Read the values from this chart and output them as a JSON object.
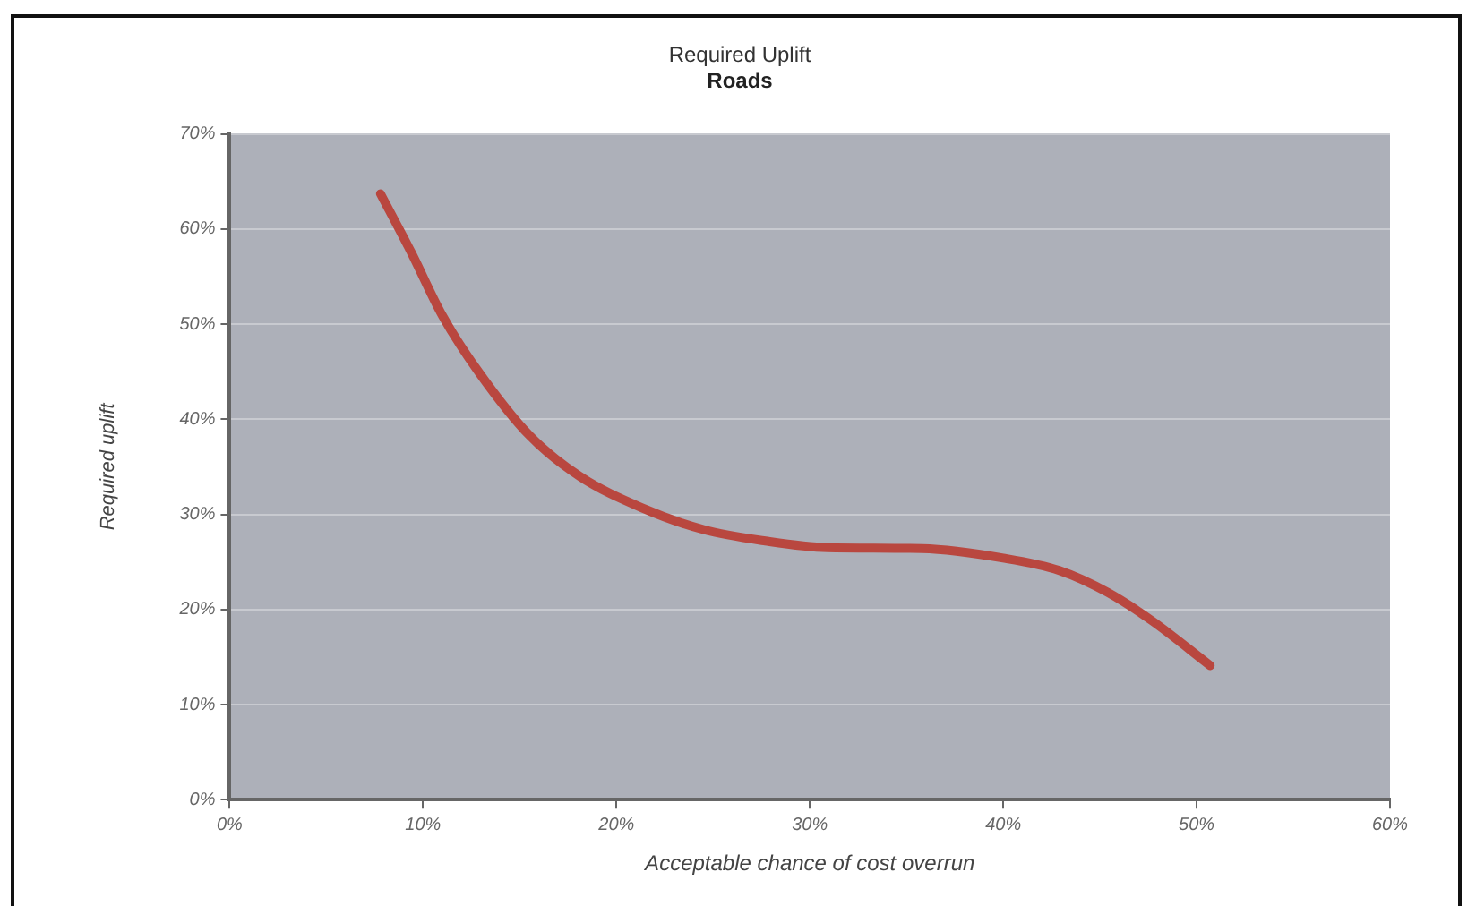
{
  "chart_data": {
    "type": "line",
    "title": "Required Uplift",
    "subtitle": "Roads",
    "xlabel": "Acceptable chance of cost overrun",
    "ylabel": "Required uplift",
    "x": [
      7.8,
      9.4,
      11.0,
      12.9,
      15.5,
      18.1,
      21.3,
      24.5,
      27.7,
      30.9,
      35.8,
      40.0,
      42.9,
      45.4,
      47.7,
      50.7
    ],
    "series": [
      {
        "color": "#b9473f",
        "values": [
          63.7,
          57.5,
          50.9,
          44.9,
          38.3,
          34.0,
          30.7,
          28.4,
          27.2,
          26.5,
          26.4,
          25.4,
          24.1,
          21.8,
          18.8,
          14.1
        ]
      }
    ],
    "xlim": [
      0,
      60
    ],
    "xticks": [
      {
        "value": 0,
        "label": "0%"
      },
      {
        "value": 10,
        "label": "10%"
      },
      {
        "value": 20,
        "label": "20%"
      },
      {
        "value": 30,
        "label": "30%"
      },
      {
        "value": 40,
        "label": "40%"
      },
      {
        "value": 50,
        "label": "50%"
      },
      {
        "value": 60,
        "label": "60%"
      }
    ],
    "ylim": [
      0,
      70
    ],
    "yticks": [
      {
        "value": 0,
        "label": "0%"
      },
      {
        "value": 10,
        "label": "10%"
      },
      {
        "value": 20,
        "label": "20%"
      },
      {
        "value": 30,
        "label": "30%"
      },
      {
        "value": 40,
        "label": "40%"
      },
      {
        "value": 50,
        "label": "50%"
      },
      {
        "value": 60,
        "label": "60%"
      },
      {
        "value": 70,
        "label": "70%"
      }
    ],
    "grid": "y",
    "legend": false,
    "marker": "none",
    "line_style": "solid"
  }
}
